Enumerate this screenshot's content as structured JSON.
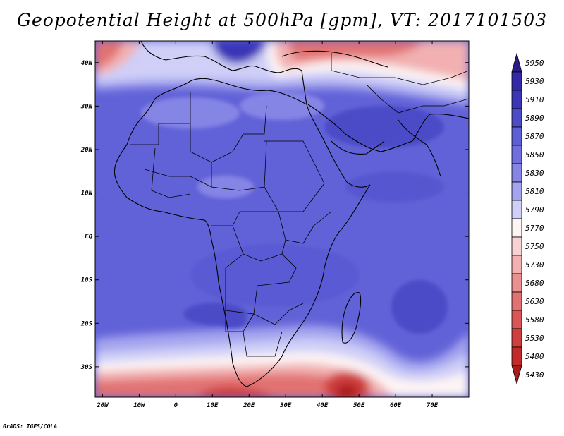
{
  "title": "Geopotential Height at 500hPa [gpm], VT: 2017101503",
  "credit": "GrADS: IGES/COLA",
  "map": {
    "lon_range": [
      -22,
      80
    ],
    "lat_range": [
      -37,
      45
    ],
    "x_ticks": [
      {
        "lon": -20,
        "label": "20W"
      },
      {
        "lon": -10,
        "label": "10W"
      },
      {
        "lon": 0,
        "label": "0"
      },
      {
        "lon": 10,
        "label": "10E"
      },
      {
        "lon": 20,
        "label": "20E"
      },
      {
        "lon": 30,
        "label": "30E"
      },
      {
        "lon": 40,
        "label": "40E"
      },
      {
        "lon": 50,
        "label": "50E"
      },
      {
        "lon": 60,
        "label": "60E"
      },
      {
        "lon": 70,
        "label": "70E"
      }
    ],
    "y_ticks": [
      {
        "lat": 40,
        "label": "40N"
      },
      {
        "lat": 30,
        "label": "30N"
      },
      {
        "lat": 20,
        "label": "20N"
      },
      {
        "lat": 10,
        "label": "10N"
      },
      {
        "lat": 0,
        "label": "EQ"
      },
      {
        "lat": -10,
        "label": "10S"
      },
      {
        "lat": -20,
        "label": "20S"
      },
      {
        "lat": -30,
        "label": "30S"
      }
    ]
  },
  "colorbar": {
    "levels": [
      {
        "label": "5950",
        "color": "#2a1a8c"
      },
      {
        "label": "5930",
        "color": "#3328a8"
      },
      {
        "label": "5910",
        "color": "#3b36b8"
      },
      {
        "label": "5890",
        "color": "#4c4cc8"
      },
      {
        "label": "5870",
        "color": "#5e5ed6"
      },
      {
        "label": "5850",
        "color": "#6f70de"
      },
      {
        "label": "5830",
        "color": "#8585e6"
      },
      {
        "label": "5810",
        "color": "#a4a4ef"
      },
      {
        "label": "5790",
        "color": "#cfcff8"
      },
      {
        "label": "5770",
        "color": "#fdf4f4"
      },
      {
        "label": "5750",
        "color": "#f8d2d2"
      },
      {
        "label": "5730",
        "color": "#f2b0b0"
      },
      {
        "label": "5680",
        "color": "#ea9090"
      },
      {
        "label": "5630",
        "color": "#e27272"
      },
      {
        "label": "5580",
        "color": "#da5656"
      },
      {
        "label": "5530",
        "color": "#d03e3e"
      },
      {
        "label": "5480",
        "color": "#c32a2a"
      },
      {
        "label": "5430",
        "color": "#a81c1c"
      }
    ]
  }
}
